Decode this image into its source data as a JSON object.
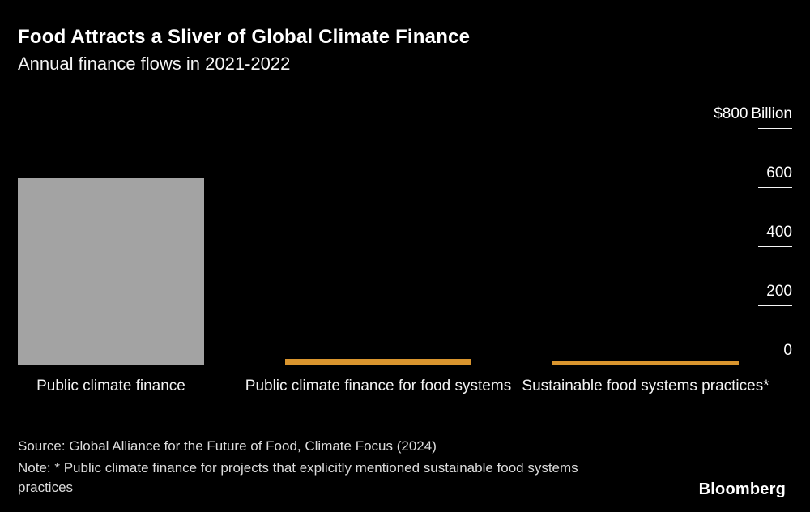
{
  "header": {
    "title": "Food Attracts a Sliver of Global Climate Finance",
    "subtitle": "Annual finance flows in 2021-2022"
  },
  "chart_data": {
    "type": "bar",
    "title": "Food Attracts a Sliver of Global Climate Finance",
    "subtitle": "Annual finance flows in 2021-2022",
    "categories": [
      "Public climate finance",
      "Public climate finance for food systems",
      "Sustainable food systems practices*"
    ],
    "values": [
      630,
      20,
      10
    ],
    "unit": "USD billions per year",
    "ylim": [
      0,
      800
    ],
    "yticks": [
      0,
      200,
      400,
      600,
      800
    ],
    "ytick_labels": [
      "0",
      "200",
      "400",
      "600",
      "$800 Billion"
    ],
    "bar_colors": [
      "#a3a3a3",
      "#d9952e",
      "#d9952e"
    ],
    "background": "#000000",
    "grid": false,
    "legend": false,
    "tick_position": "right"
  },
  "footer": {
    "source": "Source: Global Alliance for the Future of Food, Climate Focus (2024)",
    "note": "Note: * Public climate finance for projects that explicitly mentioned sustainable food systems practices",
    "brand": "Bloomberg"
  }
}
